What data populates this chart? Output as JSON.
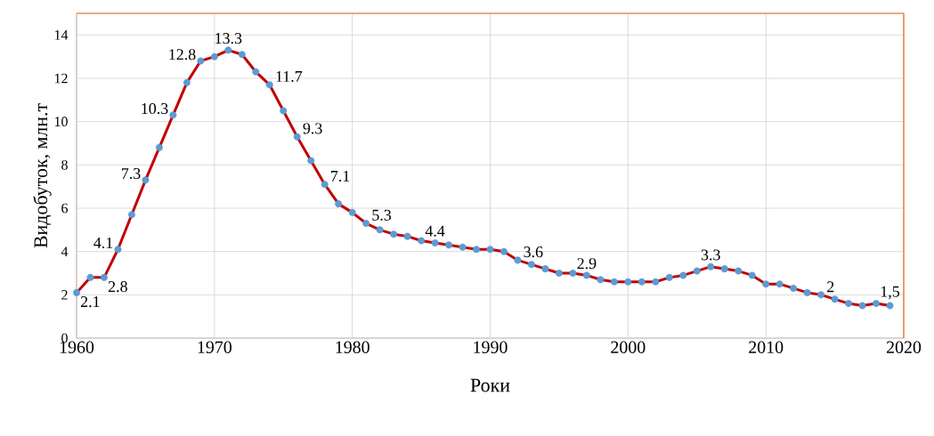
{
  "chart_data": {
    "type": "line",
    "xlabel": "Роки",
    "ylabel": "Видобуток, млн.т",
    "x": [
      1960,
      1961,
      1962,
      1963,
      1964,
      1965,
      1966,
      1967,
      1968,
      1969,
      1970,
      1971,
      1972,
      1973,
      1974,
      1975,
      1976,
      1977,
      1978,
      1979,
      1980,
      1981,
      1982,
      1983,
      1984,
      1985,
      1986,
      1987,
      1988,
      1989,
      1990,
      1991,
      1992,
      1993,
      1994,
      1995,
      1996,
      1997,
      1998,
      1999,
      2000,
      2001,
      2002,
      2003,
      2004,
      2005,
      2006,
      2007,
      2008,
      2009,
      2010,
      2011,
      2012,
      2013,
      2014,
      2015,
      2016,
      2017,
      2018,
      2019
    ],
    "series": [
      {
        "color": "#c00000",
        "colors": [
          "#5b9bd5",
          "#5b9bd5",
          "#5b9bd5",
          "#5b9bd5",
          "#5b9bd5",
          "#5b9bd5",
          "#5b9bd5",
          "#5b9bd5",
          "#5b9bd5",
          "#5b9bd5",
          "#5b9bd5",
          "#5b9bd5",
          "#5b9bd5",
          "#5b9bd5",
          "#5b9bd5",
          "#5b9bd5",
          "#5b9bd5",
          "#5b9bd5",
          "#5b9bd5",
          "#5b9bd5",
          "#5b9bd5",
          "#5b9bd5",
          "#5b9bd5",
          "#5b9bd5",
          "#5b9bd5",
          "#5b9bd5",
          "#5b9bd5",
          "#5b9bd5",
          "#5b9bd5",
          "#5b9bd5",
          "#5b9bd5",
          "#5b9bd5",
          "#5b9bd5",
          "#5b9bd5",
          "#5b9bd5",
          "#5b9bd5",
          "#5b9bd5",
          "#5b9bd5",
          "#5b9bd5",
          "#5b9bd5",
          "#5b9bd5",
          "#5b9bd5",
          "#5b9bd5",
          "#5b9bd5",
          "#5b9bd5",
          "#5b9bd5",
          "#5b9bd5",
          "#5b9bd5",
          "#5b9bd5",
          "#5b9bd5",
          "#5b9bd5",
          "#5b9bd5",
          "#5b9bd5",
          "#5b9bd5",
          "#5b9bd5",
          "#5b9bd5",
          "#5b9bd5",
          "#5b9bd5",
          "#5b9bd5",
          "#5b9bd5"
        ],
        "values": [
          2.1,
          2.8,
          2.8,
          4.1,
          5.7,
          7.3,
          8.8,
          10.3,
          11.8,
          12.8,
          13.0,
          13.3,
          13.1,
          12.3,
          11.7,
          10.5,
          9.3,
          8.2,
          7.1,
          6.2,
          5.8,
          5.3,
          5.0,
          4.8,
          4.7,
          4.5,
          4.4,
          4.3,
          4.2,
          4.1,
          4.1,
          4.0,
          3.6,
          3.4,
          3.2,
          3.0,
          3.0,
          2.9,
          2.7,
          2.6,
          2.6,
          2.6,
          2.6,
          2.8,
          2.9,
          3.1,
          3.3,
          3.2,
          3.1,
          2.9,
          2.5,
          2.5,
          2.3,
          2.1,
          2.0,
          1.8,
          1.6,
          1.5,
          1.6,
          1.5
        ],
        "value_labels": [
          "2.1",
          null,
          "2.8",
          "4.1",
          null,
          "7.3",
          null,
          "10.3",
          null,
          "12.8",
          null,
          "13.3",
          null,
          null,
          "11.7",
          null,
          "9.3",
          null,
          "7.1",
          null,
          null,
          "5.3",
          null,
          null,
          null,
          null,
          "4.4",
          null,
          null,
          null,
          null,
          null,
          "3.6",
          null,
          null,
          null,
          null,
          "2.9",
          null,
          null,
          null,
          null,
          null,
          null,
          null,
          null,
          "3.3",
          null,
          null,
          null,
          null,
          null,
          null,
          null,
          "2",
          null,
          null,
          null,
          null,
          "1,5"
        ]
      }
    ],
    "xlim": [
      1960,
      2020
    ],
    "xticks": [
      1960,
      1970,
      1980,
      1990,
      2000,
      2010,
      2020
    ],
    "ylim": [
      0,
      15
    ],
    "yticks": [
      0,
      2,
      4,
      6,
      8,
      10,
      12,
      14
    ],
    "grid": true,
    "marker": "circle",
    "line_style": "solid"
  }
}
